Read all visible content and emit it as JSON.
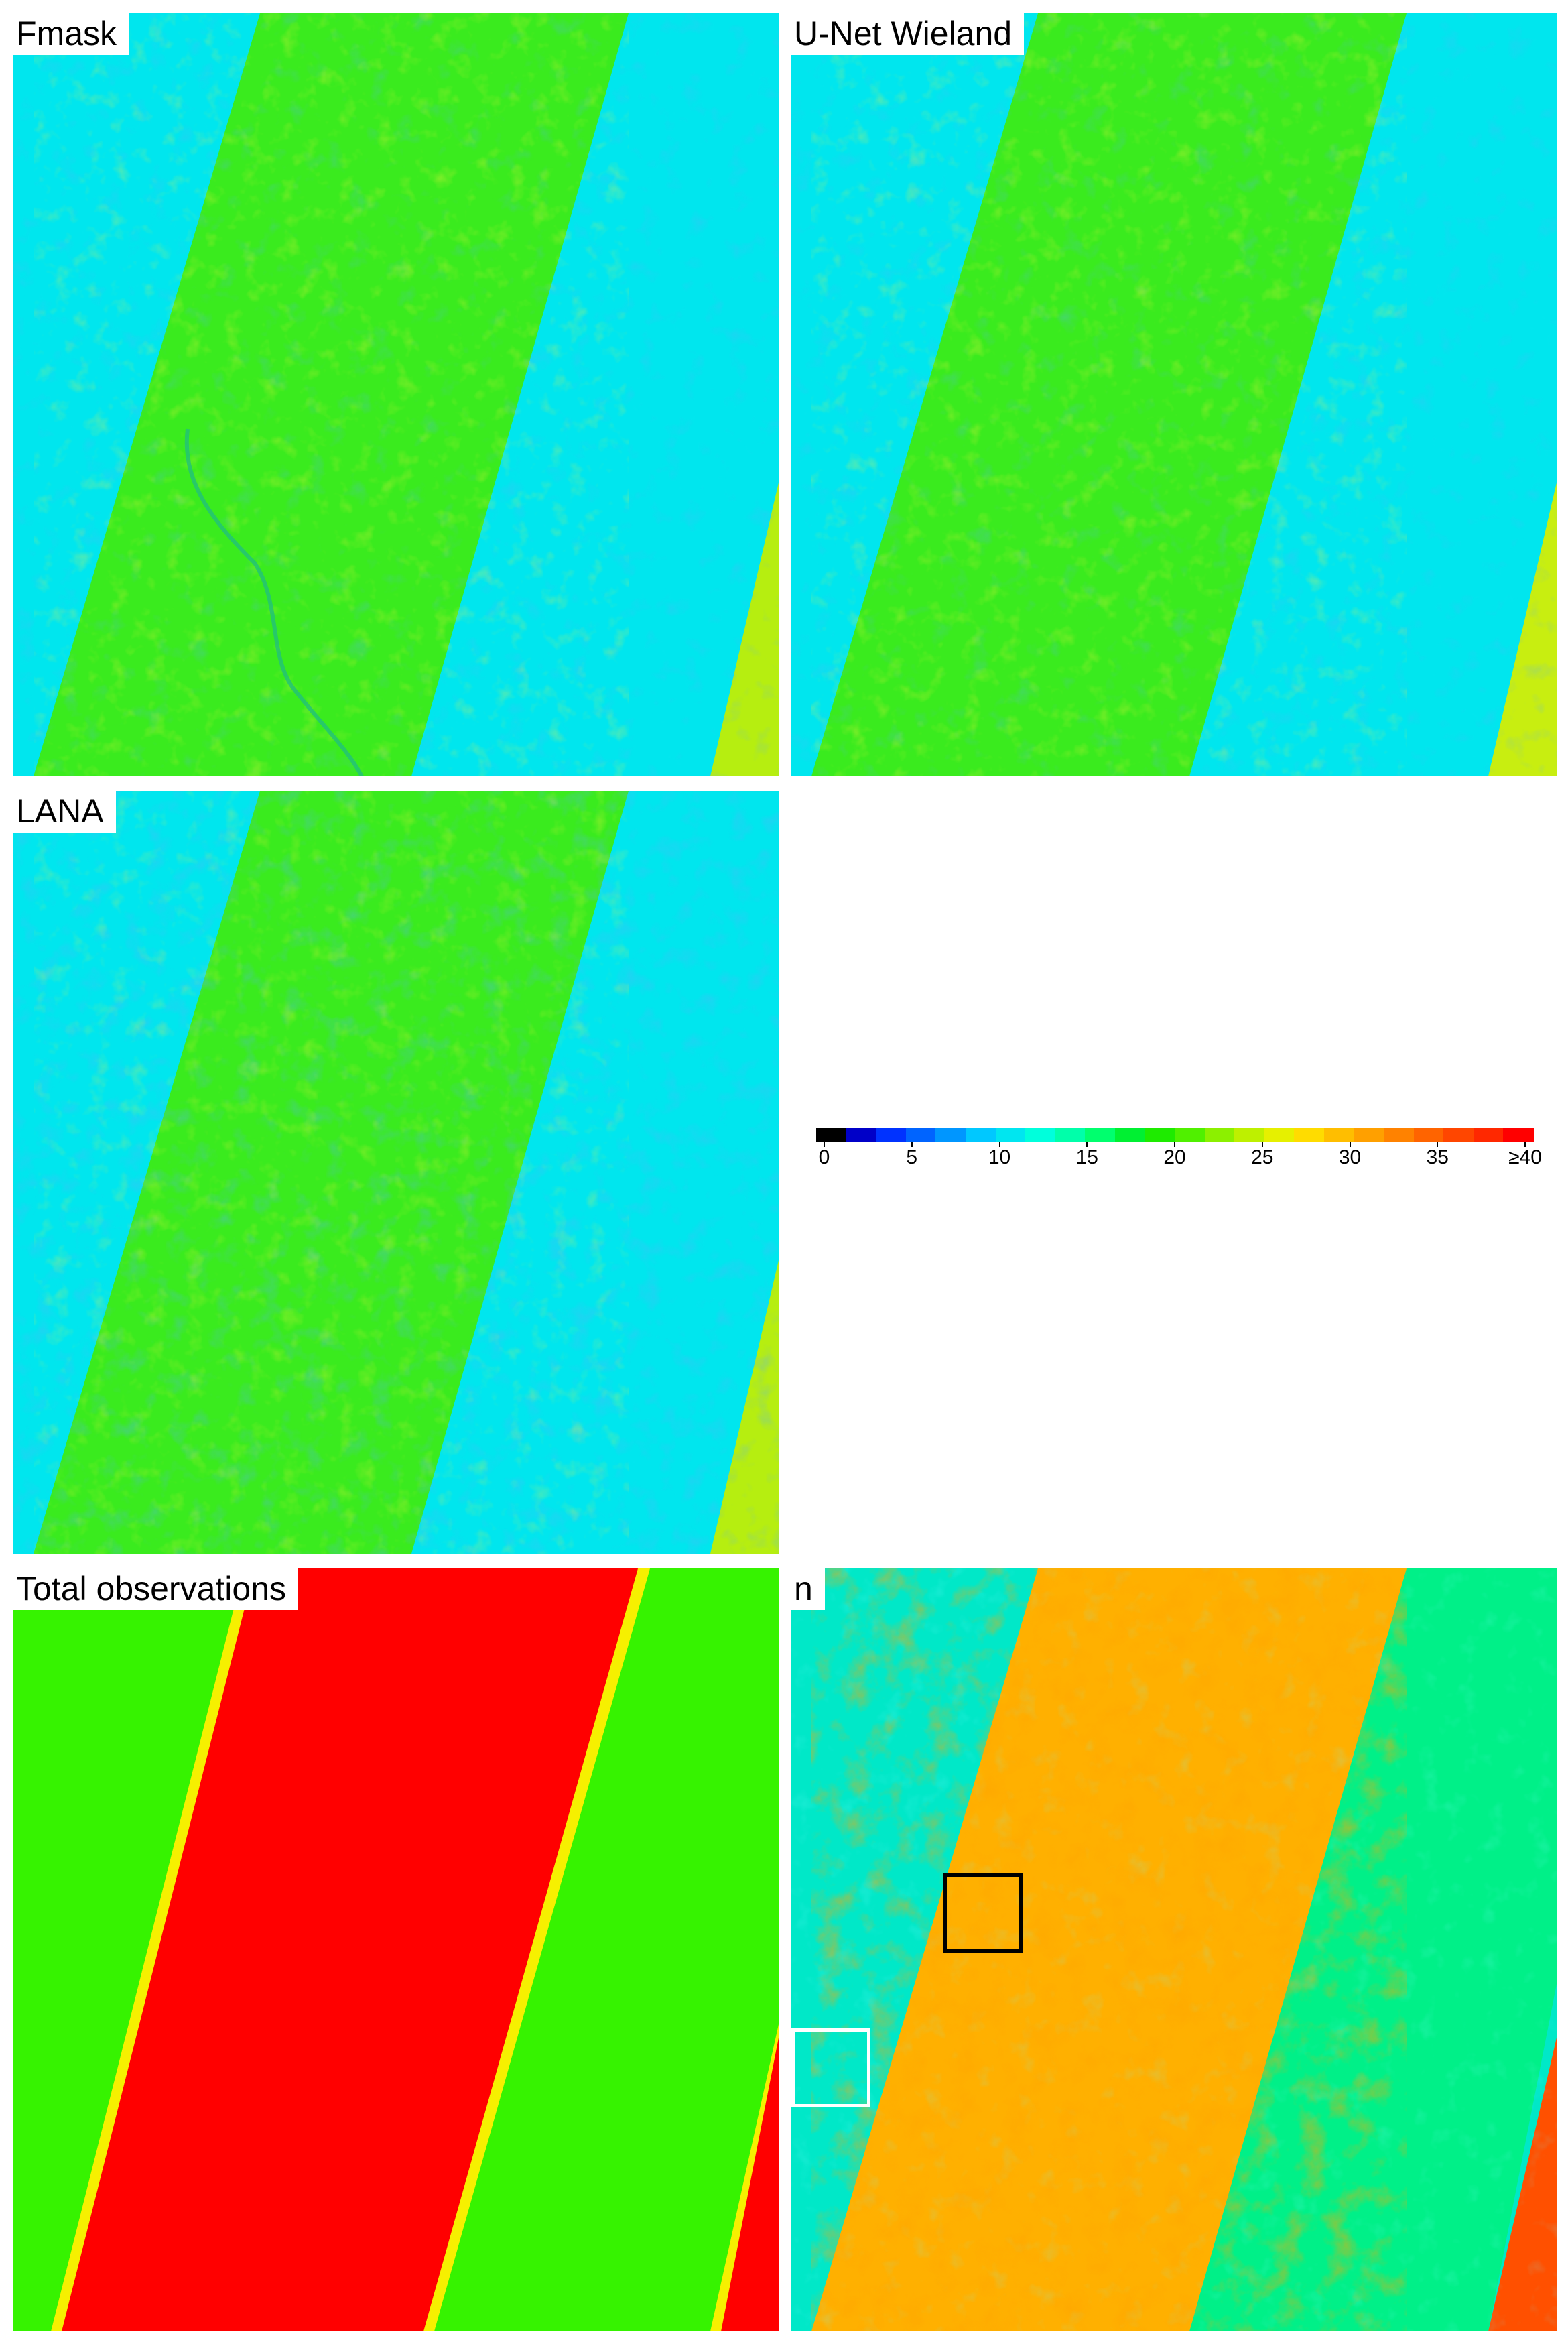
{
  "panels": {
    "fmask": {
      "label": "Fmask"
    },
    "unet": {
      "label": "U-Net Wieland"
    },
    "lana": {
      "label": "LANA"
    },
    "total": {
      "label": "Total observations"
    },
    "n": {
      "label": "n"
    }
  },
  "colorbar": {
    "ticks": [
      "0",
      "5",
      "10",
      "15",
      "20",
      "25",
      "30",
      "35",
      "≥40"
    ],
    "colors": [
      "#000000",
      "#0000c8",
      "#0032ff",
      "#0064ff",
      "#0096ff",
      "#00c8ff",
      "#00e6f0",
      "#00ffdc",
      "#00ffaa",
      "#00ff6e",
      "#00f032",
      "#1eeb00",
      "#50f000",
      "#8cf000",
      "#bef000",
      "#e6f000",
      "#ffdc00",
      "#ffbe00",
      "#ffa000",
      "#ff8200",
      "#ff6400",
      "#ff4600",
      "#ff2800",
      "#ff0000"
    ]
  },
  "colors": {
    "outer_band": "#00e6ee",
    "inner_band": "#3aeb1e",
    "total_outer": "#36f300",
    "total_inner": "#ff0000",
    "n_outer": "#00e8c8",
    "n_inner": "#ffb000",
    "n_mid": "#00f088"
  },
  "inset_boxes": [
    {
      "color": "#000000"
    },
    {
      "color": "#ffffff"
    }
  ]
}
